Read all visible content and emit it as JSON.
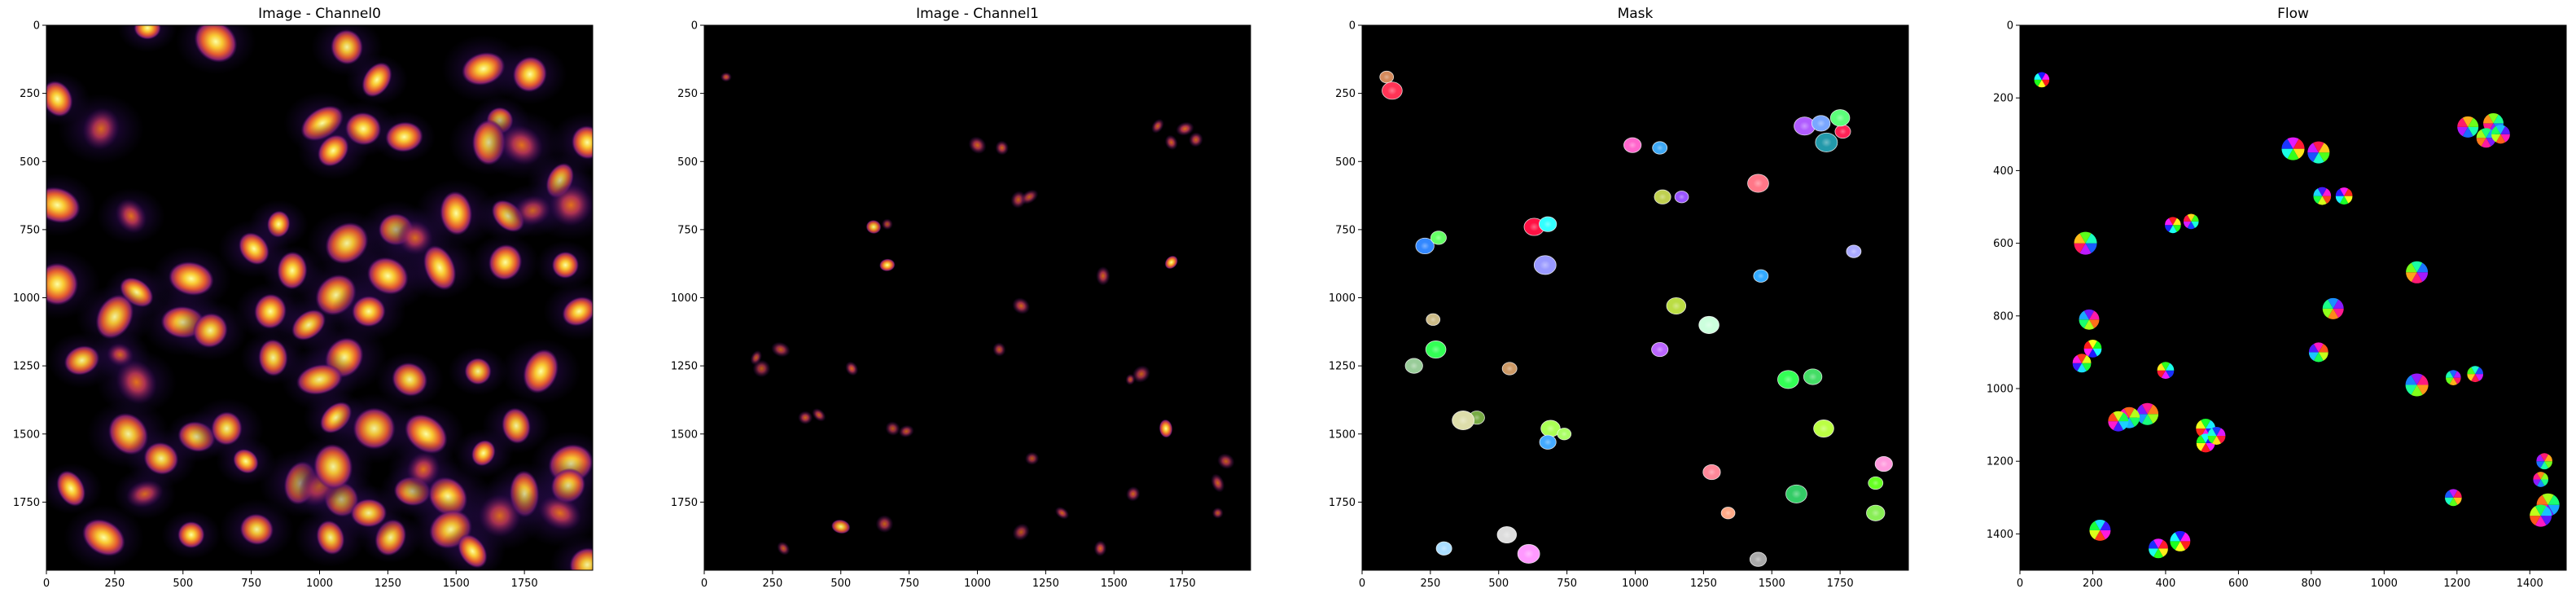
{
  "colors": {
    "background": "#000000",
    "figure": "#ffffff"
  },
  "chart_data": [
    {
      "type": "heatmap",
      "title": "Image - Channel0",
      "colormap": "inferno",
      "xticks": [
        0,
        250,
        500,
        750,
        1000,
        1250,
        1500,
        1750
      ],
      "yticks": [
        0,
        250,
        500,
        750,
        1000,
        1250,
        1500,
        1750
      ],
      "xlim": [
        0,
        2000
      ],
      "ylim": [
        2000,
        0
      ],
      "blobs": [
        [
          370,
          10,
          1
        ],
        [
          620,
          60,
          0.9
        ],
        [
          1100,
          80,
          0.8
        ],
        [
          1210,
          200,
          0.9
        ],
        [
          1600,
          160,
          0.9
        ],
        [
          1770,
          180,
          0.9
        ],
        [
          40,
          270,
          0.9
        ],
        [
          200,
          380,
          0.6
        ],
        [
          1010,
          360,
          1
        ],
        [
          1160,
          380,
          0.9
        ],
        [
          1660,
          350,
          0.9
        ],
        [
          1620,
          430,
          0.9
        ],
        [
          1050,
          460,
          1
        ],
        [
          1310,
          410,
          1
        ],
        [
          1740,
          440,
          0.7
        ],
        [
          1980,
          430,
          0.9
        ],
        [
          1880,
          570,
          0.9
        ],
        [
          1920,
          660,
          0.7
        ],
        [
          40,
          660,
          0.9
        ],
        [
          310,
          700,
          0.7
        ],
        [
          850,
          730,
          0.9
        ],
        [
          1100,
          800,
          0.8
        ],
        [
          1280,
          750,
          0.9
        ],
        [
          1690,
          700,
          0.9
        ],
        [
          1500,
          690,
          0.9
        ],
        [
          1350,
          780,
          0.6
        ],
        [
          1780,
          680,
          0.5
        ],
        [
          1250,
          920,
          1
        ],
        [
          1440,
          890,
          0.9
        ],
        [
          1680,
          870,
          0.9
        ],
        [
          1900,
          880,
          0.9
        ],
        [
          530,
          930,
          1
        ],
        [
          760,
          820,
          0.9
        ],
        [
          900,
          900,
          0.9
        ],
        [
          1060,
          990,
          0.8
        ],
        [
          1180,
          1050,
          0.9
        ],
        [
          330,
          980,
          0.9
        ],
        [
          40,
          950,
          1
        ],
        [
          250,
          1070,
          0.8
        ],
        [
          130,
          1230,
          0.8
        ],
        [
          270,
          1210,
          0.7
        ],
        [
          330,
          1310,
          0.7
        ],
        [
          820,
          1050,
          0.9
        ],
        [
          960,
          1100,
          0.8
        ],
        [
          500,
          1090,
          1
        ],
        [
          600,
          1120,
          0.8
        ],
        [
          830,
          1220,
          0.8
        ],
        [
          1090,
          1220,
          0.9
        ],
        [
          1000,
          1300,
          0.8
        ],
        [
          1330,
          1300,
          0.8
        ],
        [
          1580,
          1270,
          0.8
        ],
        [
          1810,
          1270,
          0.9
        ],
        [
          1950,
          1050,
          0.9
        ],
        [
          550,
          1510,
          0.8
        ],
        [
          300,
          1500,
          0.8
        ],
        [
          660,
          1480,
          0.8
        ],
        [
          1060,
          1440,
          0.9
        ],
        [
          1200,
          1480,
          0.8
        ],
        [
          1390,
          1500,
          0.9
        ],
        [
          1720,
          1470,
          0.8
        ],
        [
          1600,
          1570,
          0.9
        ],
        [
          1920,
          1610,
          0.9
        ],
        [
          420,
          1590,
          0.8
        ],
        [
          90,
          1700,
          0.9
        ],
        [
          930,
          1680,
          0.8
        ],
        [
          1080,
          1740,
          0.8
        ],
        [
          1340,
          1710,
          0.8
        ],
        [
          1470,
          1730,
          0.9
        ],
        [
          1750,
          1720,
          0.8
        ],
        [
          1910,
          1690,
          0.9
        ],
        [
          530,
          1870,
          1
        ],
        [
          210,
          1880,
          0.9
        ],
        [
          1040,
          1880,
          0.8
        ],
        [
          1260,
          1880,
          0.8
        ],
        [
          1480,
          1850,
          0.8
        ],
        [
          770,
          1850,
          0.8
        ],
        [
          1560,
          1930,
          0.9
        ],
        [
          1660,
          1800,
          0.6
        ],
        [
          1000,
          1690,
          0.7
        ],
        [
          1180,
          1790,
          0.8
        ],
        [
          730,
          1600,
          0.9
        ],
        [
          1050,
          1620,
          0.8
        ],
        [
          1380,
          1630,
          0.7
        ],
        [
          360,
          1720,
          0.6
        ],
        [
          1880,
          1790,
          0.7
        ],
        [
          1980,
          1980,
          0.8
        ]
      ]
    },
    {
      "type": "heatmap",
      "title": "Image - Channel1",
      "colormap": "inferno",
      "xticks": [
        0,
        250,
        500,
        750,
        1000,
        1250,
        1500,
        1750
      ],
      "yticks": [
        0,
        250,
        500,
        750,
        1000,
        1250,
        1500,
        1750
      ],
      "xlim": [
        0,
        2000
      ],
      "ylim": [
        2000,
        0
      ],
      "blobs": [
        [
          80,
          190,
          0.6
        ],
        [
          1000,
          440,
          0.6
        ],
        [
          1090,
          450,
          0.6
        ],
        [
          1660,
          370,
          0.6
        ],
        [
          1760,
          380,
          0.7
        ],
        [
          1800,
          420,
          0.6
        ],
        [
          1710,
          430,
          0.6
        ],
        [
          1150,
          640,
          0.5
        ],
        [
          1190,
          630,
          0.5
        ],
        [
          620,
          740,
          0.8
        ],
        [
          670,
          730,
          0.4
        ],
        [
          1460,
          920,
          0.6
        ],
        [
          1710,
          870,
          0.9
        ],
        [
          670,
          880,
          1
        ],
        [
          1160,
          1030,
          0.6
        ],
        [
          1080,
          1190,
          0.5
        ],
        [
          190,
          1220,
          0.5
        ],
        [
          210,
          1260,
          0.4
        ],
        [
          280,
          1190,
          0.5
        ],
        [
          540,
          1260,
          0.7
        ],
        [
          1560,
          1300,
          0.5
        ],
        [
          1600,
          1280,
          0.5
        ],
        [
          370,
          1440,
          0.6
        ],
        [
          420,
          1430,
          0.6
        ],
        [
          1690,
          1480,
          0.9
        ],
        [
          690,
          1480,
          0.4
        ],
        [
          740,
          1490,
          0.5
        ],
        [
          1910,
          1600,
          0.5
        ],
        [
          1880,
          1680,
          0.6
        ],
        [
          1570,
          1720,
          0.6
        ],
        [
          1880,
          1790,
          0.5
        ],
        [
          500,
          1840,
          0.8
        ],
        [
          290,
          1920,
          0.5
        ],
        [
          1450,
          1920,
          0.7
        ],
        [
          1160,
          1860,
          0.4
        ],
        [
          1200,
          1590,
          0.4
        ],
        [
          1310,
          1790,
          0.6
        ],
        [
          660,
          1830,
          0.5
        ]
      ]
    },
    {
      "type": "heatmap",
      "title": "Mask",
      "colormap": "labels",
      "xticks": [
        0,
        250,
        500,
        750,
        1000,
        1250,
        1500,
        1750
      ],
      "yticks": [
        0,
        250,
        500,
        750,
        1000,
        1250,
        1500,
        1750
      ],
      "xlim": [
        0,
        2000
      ],
      "ylim": [
        2000,
        0
      ],
      "blobs": [
        [
          90,
          190,
          "#d48a5c"
        ],
        [
          110,
          240,
          "#ff3355"
        ],
        [
          990,
          440,
          "#ff66cc"
        ],
        [
          1090,
          450,
          "#3fa9f5"
        ],
        [
          1620,
          370,
          "#b05cff"
        ],
        [
          1680,
          360,
          "#7aa7ff"
        ],
        [
          1760,
          390,
          "#ff2255"
        ],
        [
          1700,
          430,
          "#2299aa"
        ],
        [
          1750,
          340,
          "#5cff7a"
        ],
        [
          1100,
          630,
          "#c0d050"
        ],
        [
          1170,
          630,
          "#9955ff"
        ],
        [
          630,
          740,
          "#ff1144"
        ],
        [
          680,
          730,
          "#33ffff"
        ],
        [
          1460,
          920,
          "#33aaff"
        ],
        [
          1450,
          580,
          "#ff7788"
        ],
        [
          230,
          810,
          "#3388ff"
        ],
        [
          280,
          780,
          "#66ff66"
        ],
        [
          670,
          880,
          "#9999ff"
        ],
        [
          1150,
          1030,
          "#bbdd44"
        ],
        [
          1090,
          1190,
          "#bb66ff"
        ],
        [
          260,
          1080,
          "#ccbb88"
        ],
        [
          270,
          1190,
          "#33ff55"
        ],
        [
          190,
          1250,
          "#99cc99"
        ],
        [
          540,
          1260,
          "#cc9966"
        ],
        [
          1560,
          1300,
          "#33ff55"
        ],
        [
          1650,
          1290,
          "#44dd66"
        ],
        [
          420,
          1440,
          "#77aa44"
        ],
        [
          370,
          1450,
          "#ddddaa"
        ],
        [
          690,
          1480,
          "#aaff55"
        ],
        [
          680,
          1530,
          "#44aaff"
        ],
        [
          740,
          1500,
          "#aaff66"
        ],
        [
          1690,
          1480,
          "#bbff44"
        ],
        [
          1910,
          1610,
          "#ff99dd"
        ],
        [
          1880,
          1680,
          "#66ff22"
        ],
        [
          1590,
          1720,
          "#33cc66"
        ],
        [
          1880,
          1790,
          "#88ee55"
        ],
        [
          300,
          1920,
          "#aaddff"
        ],
        [
          610,
          1940,
          "#ff99ff"
        ],
        [
          530,
          1870,
          "#dddddd"
        ],
        [
          1450,
          1960,
          "#aaaaaa"
        ],
        [
          1340,
          1790,
          "#ffaa88"
        ],
        [
          1270,
          1100,
          "#ccffdd"
        ],
        [
          1280,
          1640,
          "#ff8899"
        ],
        [
          1800,
          830,
          "#aaaaff"
        ]
      ]
    },
    {
      "type": "heatmap",
      "title": "Flow",
      "colormap": "hsv-flow",
      "xticks": [
        0,
        200,
        400,
        600,
        800,
        1000,
        1200,
        1400
      ],
      "yticks": [
        200,
        400,
        600,
        800,
        1000,
        1200,
        1400
      ],
      "ytick_top": "0",
      "xlim": [
        0,
        1500
      ],
      "ylim": [
        1500,
        0
      ],
      "blobs": [
        [
          60,
          150
        ],
        [
          750,
          340
        ],
        [
          820,
          350
        ],
        [
          1230,
          280
        ],
        [
          1300,
          270
        ],
        [
          1280,
          310
        ],
        [
          1320,
          300
        ],
        [
          830,
          470
        ],
        [
          890,
          470
        ],
        [
          420,
          550
        ],
        [
          470,
          540
        ],
        [
          180,
          600
        ],
        [
          1090,
          680
        ],
        [
          860,
          780
        ],
        [
          190,
          810
        ],
        [
          820,
          900
        ],
        [
          170,
          930
        ],
        [
          200,
          890
        ],
        [
          400,
          950
        ],
        [
          1250,
          960
        ],
        [
          1190,
          970
        ],
        [
          1090,
          990
        ],
        [
          350,
          1070
        ],
        [
          300,
          1080
        ],
        [
          270,
          1090
        ],
        [
          510,
          1110
        ],
        [
          510,
          1150
        ],
        [
          540,
          1130
        ],
        [
          1190,
          1300
        ],
        [
          1440,
          1200
        ],
        [
          1430,
          1250
        ],
        [
          1450,
          1320
        ],
        [
          1430,
          1350
        ],
        [
          220,
          1390
        ],
        [
          440,
          1420
        ],
        [
          380,
          1440
        ]
      ]
    }
  ]
}
